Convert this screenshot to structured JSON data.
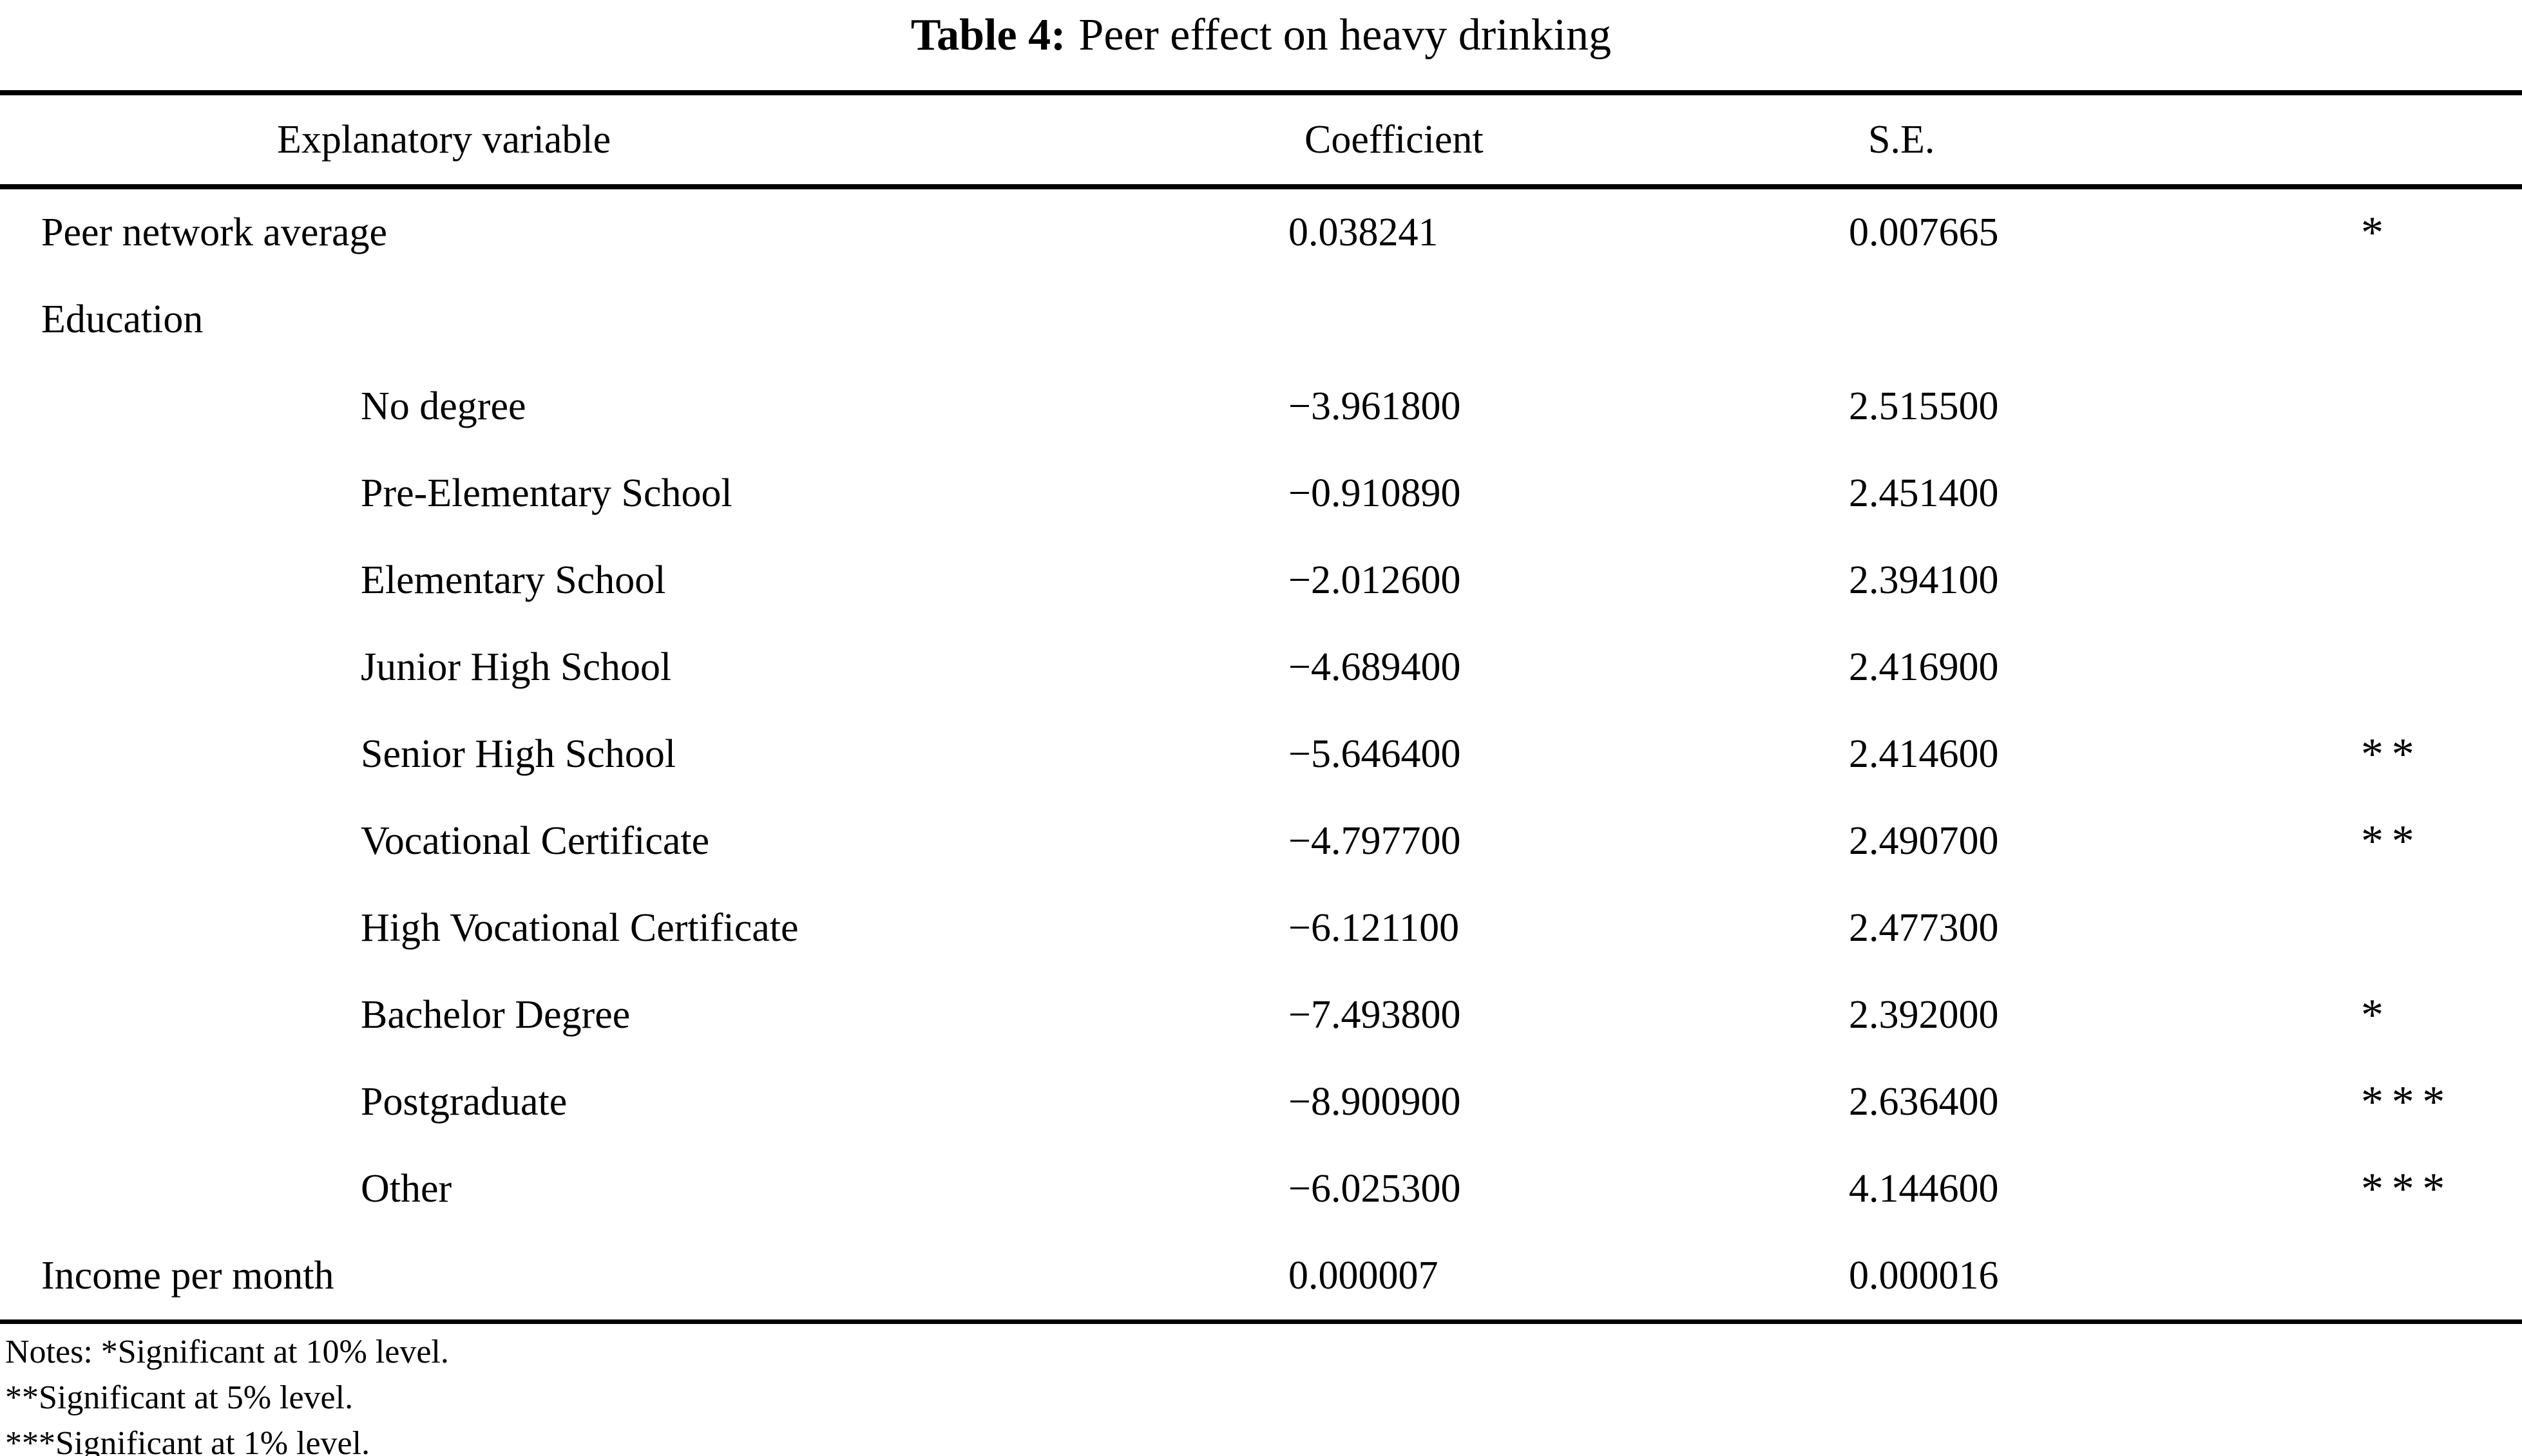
{
  "title": {
    "label": "Table 4:",
    "text": "Peer effect on heavy drinking"
  },
  "table": {
    "columns": [
      "Explanatory variable",
      "Coefficient",
      "S.E.",
      ""
    ],
    "rows": [
      {
        "label": "Peer network average",
        "indent": false,
        "coefficient": "0.038241",
        "se": "0.007665",
        "stars": "*"
      },
      {
        "label": "Education",
        "indent": false,
        "coefficient": "",
        "se": "",
        "stars": ""
      },
      {
        "label": "No degree",
        "indent": true,
        "coefficient": "−3.961800",
        "se": "2.515500",
        "stars": ""
      },
      {
        "label": "Pre-Elementary School",
        "indent": true,
        "coefficient": "−0.910890",
        "se": "2.451400",
        "stars": ""
      },
      {
        "label": "Elementary School",
        "indent": true,
        "coefficient": "−2.012600",
        "se": "2.394100",
        "stars": ""
      },
      {
        "label": "Junior High School",
        "indent": true,
        "coefficient": "−4.689400",
        "se": "2.416900",
        "stars": ""
      },
      {
        "label": "Senior High School",
        "indent": true,
        "coefficient": "−5.646400",
        "se": "2.414600",
        "stars": "**"
      },
      {
        "label": "Vocational Certificate",
        "indent": true,
        "coefficient": "−4.797700",
        "se": "2.490700",
        "stars": "**"
      },
      {
        "label": "High Vocational Certificate",
        "indent": true,
        "coefficient": "−6.121100",
        "se": "2.477300",
        "stars": ""
      },
      {
        "label": "Bachelor Degree",
        "indent": true,
        "coefficient": "−7.493800",
        "se": "2.392000",
        "stars": "*"
      },
      {
        "label": "Postgraduate",
        "indent": true,
        "coefficient": "−8.900900",
        "se": "2.636400",
        "stars": "***"
      },
      {
        "label": "Other",
        "indent": true,
        "coefficient": "−6.025300",
        "se": "4.144600",
        "stars": "***"
      },
      {
        "label": "Income per month",
        "indent": false,
        "coefficient": "0.000007",
        "se": "0.000016",
        "stars": ""
      }
    ]
  },
  "notes": [
    "Notes: *Significant at 10% level.",
    "**Significant at 5% level.",
    "***Significant at 1% level."
  ]
}
